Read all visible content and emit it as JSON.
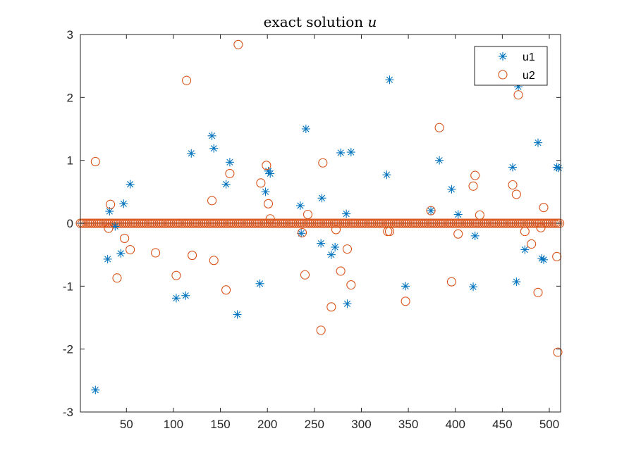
{
  "chart_data": {
    "type": "scatter",
    "title": "exact solution ",
    "title_variable": "u",
    "xlabel": "",
    "ylabel": "",
    "xlim": [
      1,
      512
    ],
    "ylim": [
      -3,
      3
    ],
    "xticks": [
      50,
      100,
      150,
      200,
      250,
      300,
      350,
      400,
      450,
      500
    ],
    "yticks": [
      -3,
      -2,
      -1,
      0,
      1,
      2,
      3
    ],
    "grid": false,
    "legend_position": "top-right",
    "baseline_value": 0,
    "colors": {
      "u1": "#0072BD",
      "u2": "#D95319",
      "axes": "#262626"
    },
    "series": [
      {
        "name": "u1",
        "marker": "asterisk",
        "color": "#0072BD",
        "points": [
          [
            17,
            -2.65
          ],
          [
            30,
            -0.57
          ],
          [
            32,
            0.19
          ],
          [
            38,
            -0.05
          ],
          [
            44,
            -0.48
          ],
          [
            47,
            0.31
          ],
          [
            54,
            0.62
          ],
          [
            103,
            -1.19
          ],
          [
            113,
            -1.15
          ],
          [
            119,
            1.11
          ],
          [
            141,
            1.39
          ],
          [
            143,
            1.19
          ],
          [
            156,
            0.62
          ],
          [
            160,
            0.97
          ],
          [
            168,
            -1.45
          ],
          [
            192,
            -0.96
          ],
          [
            198,
            0.5
          ],
          [
            201,
            0.83
          ],
          [
            203,
            0.79
          ],
          [
            235,
            0.28
          ],
          [
            241,
            1.5
          ],
          [
            236,
            -0.16
          ],
          [
            258,
            0.4
          ],
          [
            257,
            -0.32
          ],
          [
            268,
            -0.5
          ],
          [
            272,
            -0.38
          ],
          [
            278,
            1.12
          ],
          [
            284,
            0.15
          ],
          [
            285,
            -1.28
          ],
          [
            289,
            1.13
          ],
          [
            327,
            0.77
          ],
          [
            330,
            2.28
          ],
          [
            347,
            -1.0
          ],
          [
            374,
            0.2
          ],
          [
            383,
            1.0
          ],
          [
            396,
            0.54
          ],
          [
            403,
            0.14
          ],
          [
            419,
            -1.01
          ],
          [
            421,
            -0.2
          ],
          [
            461,
            0.89
          ],
          [
            465,
            -0.93
          ],
          [
            467,
            2.17
          ],
          [
            474,
            -0.42
          ],
          [
            488,
            1.28
          ],
          [
            492,
            -0.56
          ],
          [
            494,
            -0.58
          ],
          [
            508,
            0.89
          ],
          [
            510,
            0.88
          ]
        ]
      },
      {
        "name": "u2",
        "marker": "circle",
        "color": "#D95319",
        "points": [
          [
            17,
            0.98
          ],
          [
            31,
            -0.08
          ],
          [
            33,
            0.3
          ],
          [
            40,
            -0.87
          ],
          [
            48,
            -0.24
          ],
          [
            54,
            -0.42
          ],
          [
            81,
            -0.47
          ],
          [
            103,
            -0.83
          ],
          [
            114,
            2.27
          ],
          [
            120,
            -0.51
          ],
          [
            141,
            0.36
          ],
          [
            143,
            -0.59
          ],
          [
            156,
            -1.06
          ],
          [
            160,
            0.79
          ],
          [
            169,
            2.84
          ],
          [
            193,
            0.64
          ],
          [
            199,
            0.92
          ],
          [
            201,
            0.31
          ],
          [
            203,
            0.07
          ],
          [
            237,
            -0.15
          ],
          [
            240,
            -0.82
          ],
          [
            243,
            0.14
          ],
          [
            257,
            -1.7
          ],
          [
            259,
            0.96
          ],
          [
            268,
            -1.33
          ],
          [
            273,
            -0.1
          ],
          [
            278,
            -0.76
          ],
          [
            285,
            -0.41
          ],
          [
            289,
            -0.98
          ],
          [
            328,
            -0.13
          ],
          [
            330,
            -0.13
          ],
          [
            347,
            -1.24
          ],
          [
            374,
            0.2
          ],
          [
            383,
            1.52
          ],
          [
            396,
            -0.93
          ],
          [
            403,
            -0.17
          ],
          [
            419,
            0.59
          ],
          [
            421,
            0.76
          ],
          [
            426,
            0.13
          ],
          [
            461,
            0.61
          ],
          [
            465,
            0.46
          ],
          [
            467,
            2.04
          ],
          [
            474,
            -0.13
          ],
          [
            481,
            -0.33
          ],
          [
            488,
            -1.1
          ],
          [
            491,
            -0.07
          ],
          [
            494,
            0.25
          ],
          [
            508,
            -0.53
          ],
          [
            509,
            -2.05
          ]
        ]
      }
    ]
  }
}
